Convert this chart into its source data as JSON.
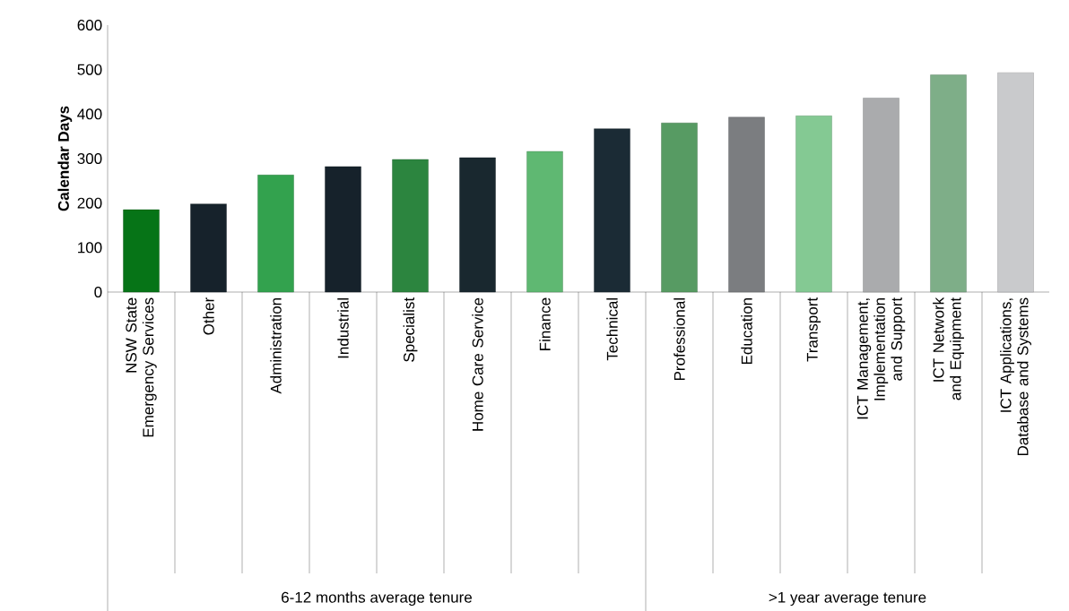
{
  "chart_data": {
    "type": "bar",
    "ylabel": "Calendar Days",
    "categories": [
      "NSW State Emergency Services",
      "Other",
      "Administration",
      "Industrial",
      "Specialist",
      "Home Care Service",
      "Finance",
      "Technical",
      "Professional",
      "Education",
      "Transport",
      "ICT Management, Implementation and Support",
      "ICT Network and Equipment",
      "ICT Applications, Database and Systems"
    ],
    "values": [
      185,
      198,
      263,
      282,
      298,
      302,
      316,
      367,
      380,
      393,
      396,
      436,
      488,
      493
    ],
    "colors": [
      "#067417",
      "#16222b",
      "#33a24e",
      "#16222b",
      "#2c853f",
      "#19282f",
      "#5fb872",
      "#1b2b35",
      "#579b63",
      "#7b7d80",
      "#84c993",
      "#aaabad",
      "#7eae88",
      "#c9cacc"
    ],
    "ylim": [
      0,
      600
    ],
    "yticks": [
      0,
      100,
      200,
      300,
      400,
      500,
      600
    ],
    "grid": false,
    "annotations": [
      "6-12 months average tenure",
      ">1 year average tenure"
    ]
  }
}
